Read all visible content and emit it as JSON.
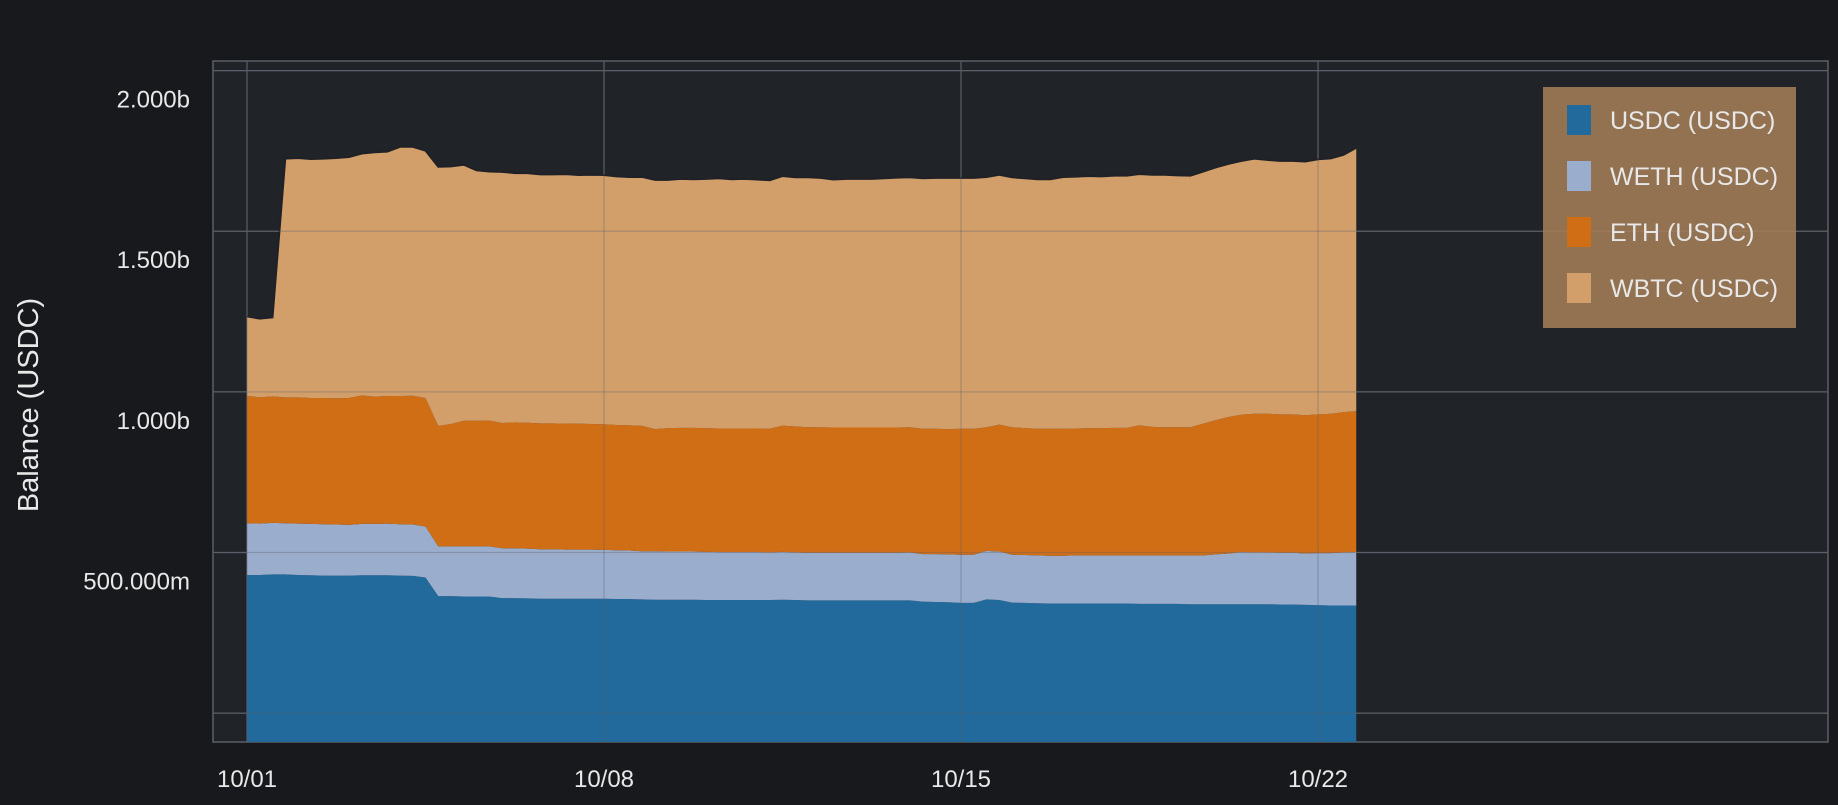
{
  "chart_data": {
    "type": "area",
    "stacked": true,
    "title": "",
    "xlabel": "",
    "ylabel": "Balance (USDC)",
    "ylim": [
      0,
      2120000000
    ],
    "xlim": [
      "2023-09-30T08:00",
      "2023-11-01T00:00"
    ],
    "x_start": "2023-10-01",
    "x_step_hours": 6,
    "grid": true,
    "legend": "top-right",
    "x_ticks": [
      {
        "date": "2023-10-01",
        "label": "10/01"
      },
      {
        "date": "2023-10-08",
        "label": "10/08"
      },
      {
        "date": "2023-10-15",
        "label": "10/15"
      },
      {
        "date": "2023-10-22",
        "label": "10/22"
      }
    ],
    "y_ticks": [
      {
        "value": 500000000,
        "label": "500.000m"
      },
      {
        "value": 1000000000,
        "label": "1.000b"
      },
      {
        "value": 1500000000,
        "label": "1.500b"
      },
      {
        "value": 2000000000,
        "label": "2.000b"
      }
    ],
    "y_gridlines": [
      90000000,
      590000000,
      1090000000,
      1590000000,
      2090000000
    ],
    "colors": {
      "background": "#17191c",
      "plot_background": "#202328",
      "grid": "#5b5f66",
      "text": "#e8e8e8",
      "legend_background": "#a37d58",
      "top_outline": "#1f2126"
    },
    "series": [
      {
        "name": "USDC (USDC)",
        "color": "#22699c",
        "values": [
          520000000,
          520000000,
          522000000,
          522000000,
          520000000,
          519000000,
          518000000,
          518000000,
          518000000,
          519000000,
          519000000,
          519000000,
          518000000,
          517000000,
          512000000,
          454000000,
          454000000,
          453000000,
          453000000,
          453000000,
          448000000,
          448000000,
          447000000,
          446000000,
          446000000,
          446000000,
          446000000,
          446000000,
          446000000,
          445000000,
          445000000,
          444000000,
          443000000,
          443000000,
          443000000,
          443000000,
          442000000,
          442000000,
          442000000,
          442000000,
          442000000,
          442000000,
          443000000,
          442000000,
          441000000,
          441000000,
          441000000,
          441000000,
          441000000,
          441000000,
          441000000,
          441000000,
          441000000,
          437000000,
          436000000,
          435000000,
          433000000,
          433000000,
          444000000,
          442000000,
          434000000,
          433000000,
          432000000,
          431000000,
          431000000,
          431000000,
          431000000,
          431000000,
          431000000,
          431000000,
          430000000,
          430000000,
          430000000,
          430000000,
          429000000,
          429000000,
          429000000,
          429000000,
          429000000,
          429000000,
          429000000,
          428000000,
          428000000,
          427000000,
          426000000,
          425000000,
          425000000,
          425000000
        ]
      },
      {
        "name": "WETH (USDC)",
        "color": "#9aadcc",
        "values": [
          161000000,
          160000000,
          160000000,
          159000000,
          160000000,
          160000000,
          160000000,
          159000000,
          158000000,
          160000000,
          160000000,
          161000000,
          160000000,
          160000000,
          159000000,
          155000000,
          155000000,
          156000000,
          156000000,
          156000000,
          155000000,
          155000000,
          155000000,
          154000000,
          154000000,
          153000000,
          153000000,
          153000000,
          152000000,
          152000000,
          151000000,
          150000000,
          151000000,
          150000000,
          150000000,
          150000000,
          150000000,
          149000000,
          149000000,
          149000000,
          149000000,
          148000000,
          149000000,
          148000000,
          148000000,
          148000000,
          148000000,
          148000000,
          148000000,
          148000000,
          148000000,
          148000000,
          149000000,
          148000000,
          149000000,
          149000000,
          150000000,
          150000000,
          151000000,
          151000000,
          149000000,
          149000000,
          149000000,
          149000000,
          149000000,
          150000000,
          150000000,
          150000000,
          150000000,
          150000000,
          151000000,
          151000000,
          151000000,
          151000000,
          152000000,
          152000000,
          155000000,
          158000000,
          162000000,
          161000000,
          161000000,
          161000000,
          161000000,
          160000000,
          162000000,
          163000000,
          165000000,
          166000000
        ]
      },
      {
        "name": "ETH (USDC)",
        "color": "#d06e16",
        "values": [
          397000000,
          393000000,
          394000000,
          392000000,
          393000000,
          392000000,
          393000000,
          393000000,
          395000000,
          400000000,
          396000000,
          397000000,
          399000000,
          401000000,
          400000000,
          375000000,
          381000000,
          391000000,
          391000000,
          392000000,
          390000000,
          392000000,
          392000000,
          392000000,
          392000000,
          392000000,
          392000000,
          391000000,
          391000000,
          390000000,
          390000000,
          390000000,
          380000000,
          384000000,
          385000000,
          385000000,
          385000000,
          385000000,
          385000000,
          385000000,
          385000000,
          385000000,
          393000000,
          392000000,
          391000000,
          391000000,
          390000000,
          390000000,
          390000000,
          390000000,
          390000000,
          390000000,
          390000000,
          390000000,
          390000000,
          390000000,
          392000000,
          392000000,
          385000000,
          395000000,
          397000000,
          395000000,
          394000000,
          395000000,
          395000000,
          395000000,
          396000000,
          396000000,
          397000000,
          397000000,
          405000000,
          400000000,
          399000000,
          399000000,
          399000000,
          410000000,
          418000000,
          425000000,
          428000000,
          432000000,
          432000000,
          431000000,
          431000000,
          430000000,
          432000000,
          434000000,
          437000000,
          439000000
        ]
      },
      {
        "name": "WBTC (USDC)",
        "color": "#d29f6b",
        "values": [
          247000000,
          245000000,
          246000000,
          743000000,
          745000000,
          744000000,
          745000000,
          748000000,
          750000000,
          753000000,
          761000000,
          761000000,
          776000000,
          775000000,
          770000000,
          807000000,
          802000000,
          797000000,
          780000000,
          775000000,
          782000000,
          776000000,
          777000000,
          775000000,
          775000000,
          777000000,
          774000000,
          776000000,
          776000000,
          774000000,
          773000000,
          775000000,
          776000000,
          773000000,
          775000000,
          774000000,
          776000000,
          779000000,
          776000000,
          777000000,
          775000000,
          774000000,
          777000000,
          776000000,
          778000000,
          776000000,
          772000000,
          774000000,
          774000000,
          774000000,
          776000000,
          778000000,
          778000000,
          780000000,
          781000000,
          782000000,
          781000000,
          781000000,
          779000000,
          778000000,
          778000000,
          778000000,
          777000000,
          777000000,
          784000000,
          784000000,
          785000000,
          784000000,
          785000000,
          785000000,
          782000000,
          785000000,
          786000000,
          784000000,
          783000000,
          785000000,
          787000000,
          788000000,
          790000000,
          794000000,
          790000000,
          789000000,
          789000000,
          790000000,
          794000000,
          795000000,
          801000000,
          820000000
        ]
      }
    ]
  }
}
